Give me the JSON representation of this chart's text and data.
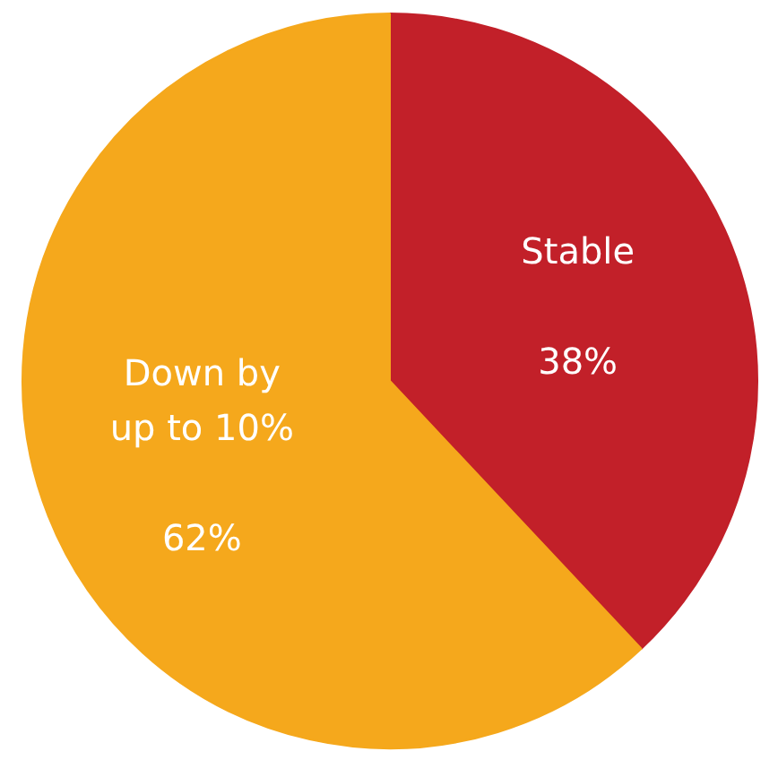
{
  "chart_data": {
    "type": "pie",
    "categories": [
      "Stable",
      "Down by\nup to 10%"
    ],
    "values": [
      38,
      62
    ],
    "colors": [
      "#c22029",
      "#f5a81c"
    ],
    "value_labels": [
      "38%",
      "62%"
    ]
  }
}
